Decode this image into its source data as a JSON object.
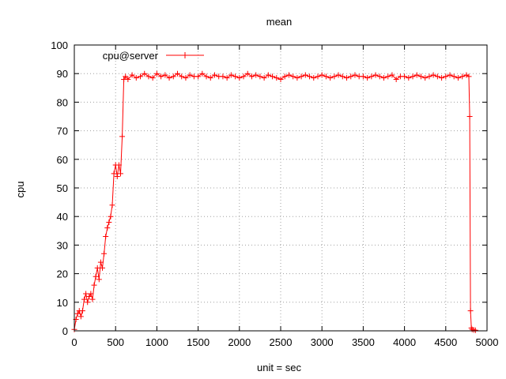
{
  "chart_data": {
    "type": "line",
    "title": "mean",
    "xlabel": "unit = sec",
    "ylabel": "cpu",
    "xlim": [
      0,
      5000
    ],
    "ylim": [
      0,
      100
    ],
    "x_ticks": [
      0,
      500,
      1000,
      1500,
      2000,
      2500,
      3000,
      3500,
      4000,
      4500,
      5000
    ],
    "y_ticks": [
      0,
      10,
      20,
      30,
      40,
      50,
      60,
      70,
      80,
      90,
      100
    ],
    "grid": true,
    "legend_position": "top-left",
    "series": [
      {
        "name": "cpu@server",
        "color": "#ff0000",
        "marker": "plus",
        "points": [
          [
            0,
            0.5
          ],
          [
            20,
            4
          ],
          [
            40,
            6
          ],
          [
            60,
            7
          ],
          [
            80,
            5
          ],
          [
            100,
            7
          ],
          [
            120,
            11
          ],
          [
            140,
            13
          ],
          [
            160,
            10
          ],
          [
            180,
            12
          ],
          [
            200,
            13
          ],
          [
            220,
            11
          ],
          [
            240,
            16
          ],
          [
            260,
            19
          ],
          [
            280,
            22
          ],
          [
            300,
            18
          ],
          [
            320,
            24
          ],
          [
            340,
            22
          ],
          [
            360,
            27
          ],
          [
            380,
            33
          ],
          [
            400,
            36
          ],
          [
            420,
            38
          ],
          [
            440,
            40
          ],
          [
            460,
            44
          ],
          [
            480,
            55
          ],
          [
            500,
            58
          ],
          [
            520,
            54
          ],
          [
            540,
            58
          ],
          [
            560,
            55
          ],
          [
            580,
            68
          ],
          [
            600,
            88
          ],
          [
            620,
            89
          ],
          [
            650,
            88
          ],
          [
            700,
            89.5
          ],
          [
            750,
            88.5
          ],
          [
            800,
            89
          ],
          [
            850,
            90
          ],
          [
            900,
            89
          ],
          [
            950,
            88.5
          ],
          [
            1000,
            90
          ],
          [
            1050,
            89
          ],
          [
            1100,
            89.5
          ],
          [
            1150,
            88.5
          ],
          [
            1200,
            89
          ],
          [
            1250,
            90
          ],
          [
            1300,
            89
          ],
          [
            1350,
            88.5
          ],
          [
            1400,
            89.5
          ],
          [
            1450,
            89
          ],
          [
            1500,
            89
          ],
          [
            1550,
            90
          ],
          [
            1600,
            89
          ],
          [
            1650,
            88.5
          ],
          [
            1700,
            89.5
          ],
          [
            1750,
            89
          ],
          [
            1800,
            89
          ],
          [
            1850,
            88.5
          ],
          [
            1900,
            89.5
          ],
          [
            1950,
            89
          ],
          [
            2000,
            88.5
          ],
          [
            2050,
            89
          ],
          [
            2100,
            90
          ],
          [
            2150,
            89
          ],
          [
            2200,
            89.5
          ],
          [
            2250,
            89
          ],
          [
            2300,
            88.5
          ],
          [
            2350,
            89.5
          ],
          [
            2400,
            89
          ],
          [
            2450,
            88.5
          ],
          [
            2500,
            88
          ],
          [
            2550,
            89
          ],
          [
            2600,
            89.5
          ],
          [
            2650,
            89
          ],
          [
            2700,
            88.5
          ],
          [
            2750,
            89
          ],
          [
            2800,
            89.5
          ],
          [
            2850,
            89
          ],
          [
            2900,
            88.5
          ],
          [
            2950,
            89
          ],
          [
            3000,
            89.5
          ],
          [
            3050,
            89
          ],
          [
            3100,
            88.5
          ],
          [
            3150,
            89
          ],
          [
            3200,
            89.5
          ],
          [
            3250,
            89
          ],
          [
            3300,
            88.5
          ],
          [
            3350,
            89
          ],
          [
            3400,
            89.5
          ],
          [
            3450,
            89
          ],
          [
            3500,
            89
          ],
          [
            3550,
            88.5
          ],
          [
            3600,
            89
          ],
          [
            3650,
            89.5
          ],
          [
            3700,
            89
          ],
          [
            3750,
            88.5
          ],
          [
            3800,
            89
          ],
          [
            3850,
            89.5
          ],
          [
            3900,
            88
          ],
          [
            3950,
            89
          ],
          [
            4000,
            89
          ],
          [
            4050,
            88.5
          ],
          [
            4100,
            89
          ],
          [
            4150,
            89.5
          ],
          [
            4200,
            89
          ],
          [
            4250,
            88.5
          ],
          [
            4300,
            89
          ],
          [
            4350,
            89.5
          ],
          [
            4400,
            89
          ],
          [
            4450,
            88.5
          ],
          [
            4500,
            89
          ],
          [
            4550,
            89.5
          ],
          [
            4600,
            89
          ],
          [
            4650,
            88.5
          ],
          [
            4700,
            89
          ],
          [
            4750,
            89.5
          ],
          [
            4780,
            89
          ],
          [
            4790,
            75
          ],
          [
            4800,
            7
          ],
          [
            4810,
            1
          ],
          [
            4820,
            0.5
          ],
          [
            4840,
            0.3
          ],
          [
            4860,
            0.2
          ]
        ]
      }
    ]
  }
}
